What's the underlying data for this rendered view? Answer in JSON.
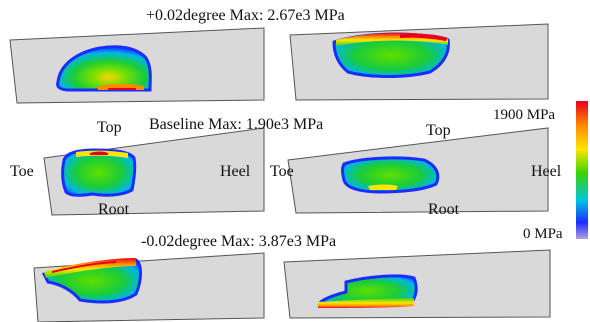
{
  "row_titles": {
    "plus": "+0.02degree Max: 2.67e3 MPa",
    "baseline": "Baseline Max: 1.90e3 MPa",
    "minus": "-0.02degree Max: 3.87e3 MPa"
  },
  "tooth_labels": {
    "top": "Top",
    "root": "Root",
    "toe": "Toe",
    "heel": "Heel"
  },
  "colorbar": {
    "max_label": "1900 MPa",
    "min_label": "0 MPa",
    "colors": [
      "#e8001c",
      "#ff8a00",
      "#ffe600",
      "#39d400",
      "#00c4e0",
      "#1a2cff",
      "#b3a0e0"
    ]
  },
  "panel_colors": {
    "tooth_fill": "#d9d9d9",
    "tooth_edge": "#555555"
  }
}
